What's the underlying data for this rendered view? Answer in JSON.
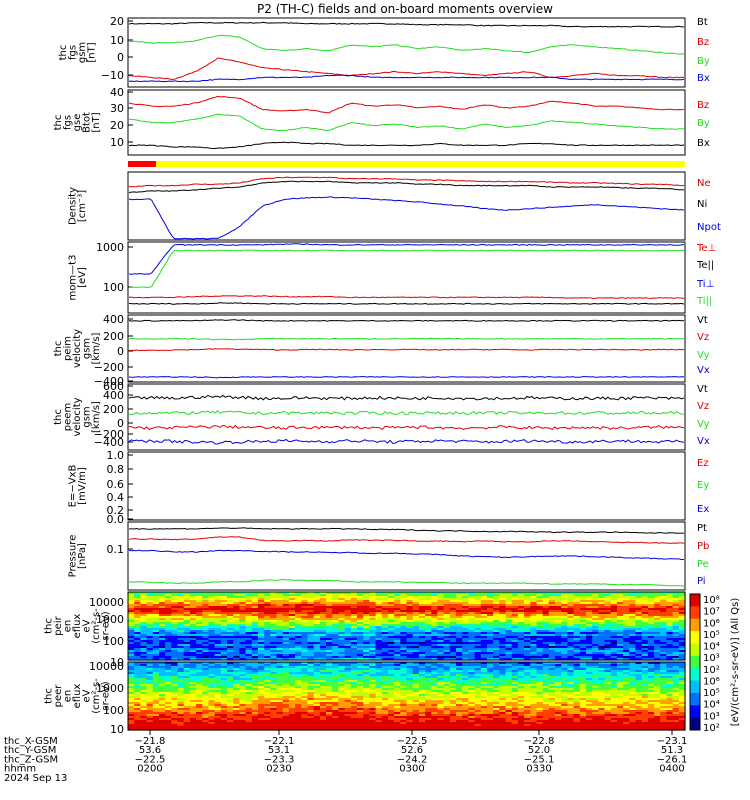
{
  "title": "P2 (TH-C) fields and on-board moments overview",
  "colors": {
    "black": "#000000",
    "red": "#e00000",
    "green": "#22dd22",
    "blue": "#0000e0",
    "yellow": "#ffff00",
    "barred": "#ff0000"
  },
  "chart_data": [
    {
      "id": "fgs_gsm",
      "type": "line",
      "ylabel": [
        "thc",
        "fgs",
        "gsm",
        "[nT]"
      ],
      "yticks": [
        "20",
        "10",
        "0",
        "−10"
      ],
      "ylim": [
        -15,
        21
      ],
      "series": [
        {
          "name": "Bt",
          "color": "black",
          "values": [
            18,
            18,
            18,
            18.5,
            18.5,
            18.5,
            18.5,
            18.5,
            18,
            18,
            18,
            18,
            18,
            17.5,
            17.5,
            17.5,
            17,
            17,
            17,
            17,
            16.5,
            16.5,
            16.5,
            16.5,
            16.5,
            16.5
          ]
        },
        {
          "name": "Bz",
          "color": "red",
          "values": [
            -9,
            -10,
            -11,
            -7,
            0,
            -2,
            -5,
            -6,
            -7,
            -8,
            -9,
            -8,
            -7,
            -8,
            -7,
            -8,
            -9,
            -8,
            -7,
            -10,
            -9,
            -8,
            -9,
            -9,
            -10,
            -10
          ]
        },
        {
          "name": "By",
          "color": "green",
          "values": [
            9,
            8,
            8,
            9,
            12,
            11,
            5,
            4,
            5,
            4,
            7,
            6,
            7,
            5,
            6,
            4,
            5,
            4,
            3,
            6,
            7,
            6,
            5,
            4,
            3,
            2
          ]
        },
        {
          "name": "Bx",
          "color": "blue",
          "values": [
            -12,
            -12,
            -12,
            -12,
            -11,
            -11,
            -10,
            -10,
            -10,
            -9,
            -9,
            -10,
            -10,
            -10,
            -10,
            -10,
            -10,
            -10,
            -10,
            -10,
            -11,
            -11,
            -11,
            -11,
            -11,
            -11
          ]
        }
      ]
    },
    {
      "id": "fgs_gse",
      "type": "line",
      "ylabel": [
        "thc",
        "fgs",
        "gse",
        "Btot",
        "[nT]"
      ],
      "yticks": [
        "40",
        "30",
        "20",
        "10"
      ],
      "ylim": [
        0,
        40
      ],
      "series": [
        {
          "name": "Bz",
          "color": "red",
          "values": [
            32,
            30,
            30,
            32,
            36,
            35,
            28,
            27,
            28,
            26,
            32,
            30,
            31,
            29,
            30,
            28,
            31,
            29,
            30,
            33,
            32,
            30,
            30,
            29,
            28,
            28
          ]
        },
        {
          "name": "By",
          "color": "green",
          "values": [
            22,
            20,
            20,
            22,
            25,
            24,
            16,
            15,
            17,
            15,
            20,
            18,
            19,
            17,
            18,
            16,
            19,
            17,
            18,
            21,
            20,
            19,
            18,
            17,
            16,
            16
          ]
        },
        {
          "name": "Bx",
          "color": "black",
          "values": [
            6,
            6,
            5,
            5,
            4,
            5,
            7,
            8,
            7,
            7,
            6,
            6,
            6,
            6,
            7,
            6,
            6,
            6,
            7,
            7,
            6,
            6,
            6,
            6,
            6,
            6
          ]
        }
      ]
    },
    {
      "id": "density",
      "type": "line",
      "ylabel": [
        "Density",
        "[cm⁻³]"
      ],
      "yticks": [],
      "series": [
        {
          "name": "Ne",
          "color": "red",
          "values": [
            0.78,
            0.8,
            0.8,
            0.82,
            0.82,
            0.84,
            0.9,
            0.92,
            0.92,
            0.92,
            0.9,
            0.9,
            0.9,
            0.88,
            0.88,
            0.87,
            0.86,
            0.86,
            0.86,
            0.85,
            0.84,
            0.84,
            0.83,
            0.82,
            0.82,
            0.8
          ]
        },
        {
          "name": "Ni",
          "color": "black",
          "values": [
            0.7,
            0.72,
            0.72,
            0.74,
            0.76,
            0.78,
            0.84,
            0.86,
            0.86,
            0.86,
            0.84,
            0.84,
            0.84,
            0.82,
            0.82,
            0.8,
            0.8,
            0.8,
            0.8,
            0.78,
            0.78,
            0.78,
            0.77,
            0.76,
            0.76,
            0.74
          ]
        },
        {
          "name": "Npot",
          "color": "blue",
          "values": [
            0.6,
            0.6,
            0.02,
            0.02,
            0.02,
            0.2,
            0.5,
            0.6,
            0.62,
            0.63,
            0.62,
            0.6,
            0.58,
            0.56,
            0.53,
            0.5,
            0.46,
            0.44,
            0.46,
            0.48,
            0.5,
            0.52,
            0.5,
            0.48,
            0.46,
            0.44
          ]
        }
      ]
    },
    {
      "id": "temps",
      "type": "line",
      "ylabel": [
        "mom—t3",
        "[eV]"
      ],
      "yticks": [
        "1000",
        "100"
      ],
      "series": [
        {
          "name": "Te⊥",
          "color": "red",
          "values": [
            0.22,
            0.22,
            0.22,
            0.23,
            0.24,
            0.24,
            0.24,
            0.23,
            0.23,
            0.23,
            0.22,
            0.22,
            0.22,
            0.22,
            0.22,
            0.22,
            0.22,
            0.22,
            0.22,
            0.22,
            0.21,
            0.21,
            0.21,
            0.21,
            0.21,
            0.21
          ]
        },
        {
          "name": "Te||",
          "color": "black",
          "values": [
            0.13,
            0.13,
            0.13,
            0.13,
            0.14,
            0.14,
            0.13,
            0.13,
            0.13,
            0.13,
            0.13,
            0.13,
            0.13,
            0.13,
            0.13,
            0.13,
            0.13,
            0.13,
            0.13,
            0.13,
            0.13,
            0.13,
            0.13,
            0.13,
            0.13,
            0.13
          ]
        },
        {
          "name": "Ti⊥",
          "color": "blue",
          "values": [
            0.55,
            0.55,
            0.96,
            0.96,
            0.96,
            0.96,
            0.96,
            0.97,
            0.97,
            0.96,
            0.96,
            0.96,
            0.96,
            0.96,
            0.96,
            0.96,
            0.96,
            0.96,
            0.96,
            0.96,
            0.96,
            0.96,
            0.96,
            0.96,
            0.96,
            0.96
          ]
        },
        {
          "name": "Ti||",
          "color": "green",
          "values": [
            0.36,
            0.36,
            0.88,
            0.88,
            0.88,
            0.88,
            0.88,
            0.88,
            0.88,
            0.88,
            0.88,
            0.88,
            0.88,
            0.88,
            0.88,
            0.88,
            0.88,
            0.88,
            0.88,
            0.88,
            0.88,
            0.88,
            0.88,
            0.88,
            0.88,
            0.88
          ]
        }
      ]
    },
    {
      "id": "peim_vel",
      "type": "line",
      "ylabel": [
        "thc",
        "peim",
        "velocity",
        "gsm",
        "[km/s]"
      ],
      "yticks": [
        "400",
        "200",
        "0",
        "−200",
        "−400"
      ],
      "ylim": [
        -450,
        480
      ],
      "series": [
        {
          "name": "Vt",
          "color": "black",
          "values": [
            400,
            400,
            400,
            400,
            410,
            410,
            400,
            400,
            400,
            400,
            400,
            400,
            400,
            400,
            400,
            400,
            400,
            400,
            400,
            400,
            400,
            400,
            400,
            400,
            400,
            400
          ]
        },
        {
          "name": "Vz",
          "color": "red",
          "values": [
            -10,
            -10,
            -5,
            0,
            10,
            5,
            0,
            -5,
            0,
            0,
            -5,
            0,
            0,
            0,
            -5,
            0,
            0,
            0,
            -5,
            0,
            0,
            0,
            0,
            -5,
            0,
            0
          ]
        },
        {
          "name": "Vy",
          "color": "green",
          "values": [
            150,
            150,
            150,
            150,
            140,
            140,
            150,
            150,
            150,
            150,
            150,
            150,
            150,
            150,
            150,
            150,
            150,
            150,
            150,
            150,
            150,
            150,
            150,
            150,
            150,
            150
          ]
        },
        {
          "name": "Vx",
          "color": "blue",
          "values": [
            -380,
            -380,
            -380,
            -380,
            -390,
            -380,
            -380,
            -380,
            -380,
            -380,
            -380,
            -380,
            -380,
            -380,
            -380,
            -380,
            -380,
            -380,
            -380,
            -380,
            -380,
            -380,
            -380,
            -380,
            -380,
            -380
          ]
        }
      ]
    },
    {
      "id": "peem_vel",
      "type": "line",
      "ylabel": [
        "thc",
        "peem",
        "velocity",
        "gsm",
        "[km/s]"
      ],
      "yticks": [
        "600",
        "400",
        "200",
        "0",
        "−200",
        "−400"
      ],
      "ylim": [
        -500,
        650
      ],
      "series": [
        {
          "name": "Vt",
          "color": "black",
          "values": [
            400,
            410,
            400,
            420,
            430,
            420,
            400,
            400,
            410,
            400,
            400,
            410,
            400,
            400,
            410,
            400,
            400,
            400,
            410,
            400,
            400,
            400,
            400,
            410,
            400,
            400
          ]
        },
        {
          "name": "Vz",
          "color": "red",
          "values": [
            -100,
            -120,
            -110,
            -100,
            -90,
            -100,
            -110,
            -120,
            -100,
            -110,
            -100,
            -120,
            -110,
            -100,
            -110,
            -120,
            -110,
            -100,
            -110,
            -120,
            -110,
            -110,
            -120,
            -110,
            -100,
            -110
          ]
        },
        {
          "name": "Vy",
          "color": "green",
          "values": [
            140,
            150,
            140,
            150,
            160,
            150,
            140,
            150,
            140,
            150,
            140,
            150,
            140,
            150,
            140,
            150,
            140,
            150,
            140,
            150,
            140,
            150,
            140,
            150,
            140,
            150
          ]
        },
        {
          "name": "Vx",
          "color": "blue",
          "values": [
            -350,
            -340,
            -350,
            -360,
            -370,
            -360,
            -350,
            -340,
            -350,
            -350,
            -340,
            -350,
            -360,
            -350,
            -340,
            -350,
            -360,
            -350,
            -340,
            -350,
            -360,
            -350,
            -340,
            -350,
            -360,
            -350
          ]
        }
      ]
    },
    {
      "id": "efield",
      "type": "line",
      "ylabel": [
        "E=−VxB",
        "[mV/m]"
      ],
      "yticks": [
        "1.0",
        "0.8",
        "0.6",
        "0.4",
        "0.2",
        "0.0"
      ],
      "ylim": [
        0,
        1
      ],
      "series": [
        {
          "name": "Ez",
          "color": "red",
          "values": []
        },
        {
          "name": "Ey",
          "color": "green",
          "values": []
        },
        {
          "name": "Ex",
          "color": "blue",
          "values": []
        }
      ]
    },
    {
      "id": "pressure",
      "type": "line",
      "ylabel": [
        "Pressure",
        "[nPa]"
      ],
      "yticks": [
        "0.1"
      ],
      "series": [
        {
          "name": "Pt",
          "color": "black",
          "values": [
            0.9,
            0.9,
            0.9,
            0.9,
            0.91,
            0.91,
            0.9,
            0.9,
            0.9,
            0.9,
            0.9,
            0.89,
            0.89,
            0.88,
            0.87,
            0.87,
            0.86,
            0.86,
            0.86,
            0.85,
            0.85,
            0.85,
            0.85,
            0.84,
            0.84,
            0.84
          ]
        },
        {
          "name": "Pb",
          "color": "red",
          "values": [
            0.75,
            0.75,
            0.74,
            0.75,
            0.78,
            0.78,
            0.73,
            0.72,
            0.73,
            0.72,
            0.74,
            0.73,
            0.73,
            0.72,
            0.72,
            0.71,
            0.72,
            0.71,
            0.71,
            0.72,
            0.72,
            0.71,
            0.7,
            0.7,
            0.69,
            0.69
          ]
        },
        {
          "name": "Pe",
          "color": "green",
          "values": [
            0.12,
            0.11,
            0.1,
            0.1,
            0.12,
            0.12,
            0.14,
            0.15,
            0.14,
            0.14,
            0.12,
            0.12,
            0.12,
            0.11,
            0.11,
            0.1,
            0.1,
            0.1,
            0.1,
            0.09,
            0.09,
            0.09,
            0.08,
            0.08,
            0.07,
            0.06
          ]
        },
        {
          "name": "Pi",
          "color": "blue",
          "values": [
            0.58,
            0.58,
            0.56,
            0.56,
            0.58,
            0.58,
            0.57,
            0.56,
            0.56,
            0.55,
            0.55,
            0.54,
            0.54,
            0.53,
            0.52,
            0.5,
            0.49,
            0.48,
            0.49,
            0.5,
            0.5,
            0.49,
            0.48,
            0.47,
            0.46,
            0.45
          ]
        }
      ]
    },
    {
      "id": "peir_spec",
      "type": "heatmap",
      "ylabel": [
        "thc",
        "peir",
        "en",
        "eflux",
        "eV",
        "(cm²-s-",
        "sr-eV)"
      ],
      "yticks": [
        "10000",
        "1000",
        "100",
        "10"
      ]
    },
    {
      "id": "peer_spec",
      "type": "heatmap",
      "ylabel": [
        "thc",
        "peer",
        "en",
        "eflux",
        "eV",
        "(cm²-s-",
        "sr-eV)"
      ],
      "yticks": [
        "10000",
        "1000",
        "100",
        "10"
      ]
    }
  ],
  "colorbar": {
    "label": "[eV/(cm²-s-sr-eV)] (All Qs)",
    "ticks": [
      "10⁸",
      "10⁷",
      "10⁶",
      "10⁵",
      "10⁴",
      "10³",
      "10²",
      "10⁶",
      "10⁵",
      "10⁴",
      "10³",
      "10²"
    ]
  },
  "footer": {
    "row_labels": [
      "thc_X-GSM",
      "thc_Y-GSM",
      "thc_Z-GSM",
      "hhmm",
      "2024 Sep 13"
    ],
    "columns": [
      [
        "−21.8",
        "53.6",
        "−22.5",
        "0200"
      ],
      [
        "−22.1",
        "53.1",
        "−23.3",
        "0230"
      ],
      [
        "−22.5",
        "52.6",
        "−24.2",
        "0300"
      ],
      [
        "−22.8",
        "52.0",
        "−25.1",
        "0330"
      ],
      [
        "−23.1",
        "51.3",
        "−26.1",
        "0400"
      ]
    ]
  }
}
